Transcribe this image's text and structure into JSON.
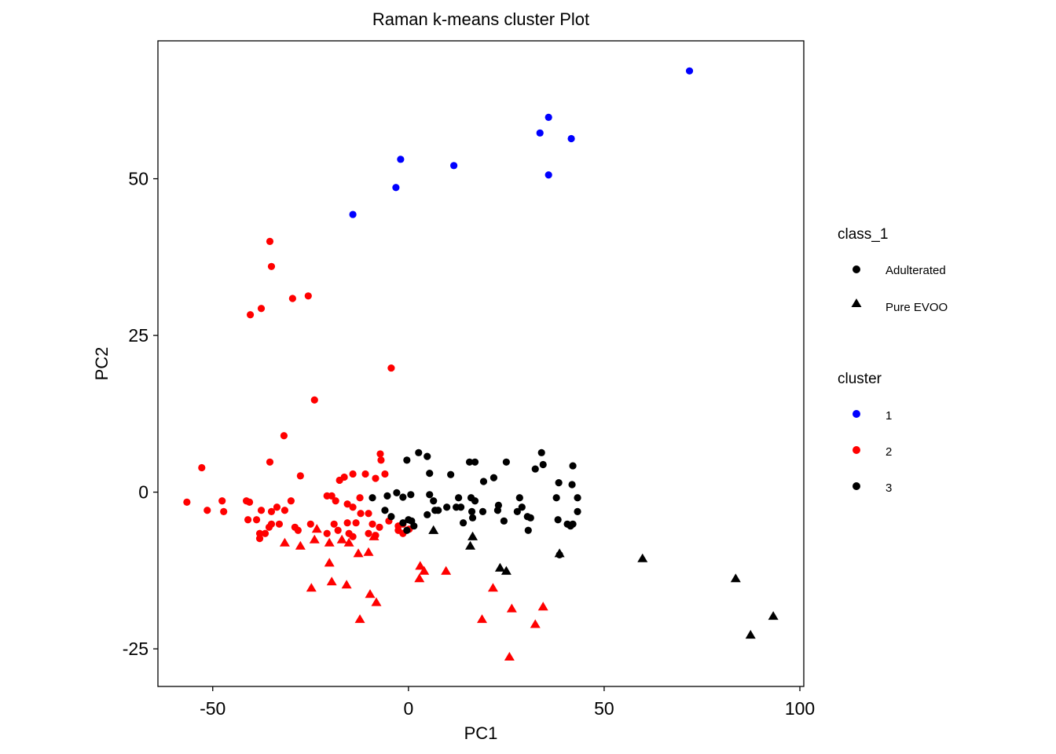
{
  "chart_data": {
    "type": "scatter",
    "title": "Raman k-means cluster Plot",
    "xlabel": "PC1",
    "ylabel": "PC2",
    "xlim": [
      -64,
      101
    ],
    "ylim": [
      -31,
      72
    ],
    "x_ticks": [
      -50,
      0,
      50,
      100
    ],
    "y_ticks": [
      -25,
      0,
      25,
      50
    ],
    "x_tick_labels": [
      "-50",
      "0",
      "50",
      "100"
    ],
    "y_tick_labels": [
      "-25",
      "0",
      "25",
      "50"
    ],
    "grid": false,
    "legend_position": "right",
    "legend": {
      "class_title": "class_1",
      "class_items": [
        {
          "label": "Adulterated",
          "shape": "circle"
        },
        {
          "label": "Pure EVOO",
          "shape": "triangle"
        }
      ],
      "cluster_title": "cluster",
      "cluster_items": [
        {
          "label": "1",
          "color": "#0000ff"
        },
        {
          "label": "2",
          "color": "#ff0000"
        },
        {
          "label": "3",
          "color": "#000000"
        }
      ]
    },
    "series": [
      {
        "cluster": "1",
        "class_1": "Adulterated",
        "shape": "circle",
        "color": "#0000ff",
        "points": [
          [
            71.8,
            67.2
          ],
          [
            35.8,
            59.8
          ],
          [
            33.6,
            57.3
          ],
          [
            41.6,
            56.4
          ],
          [
            -2.0,
            53.1
          ],
          [
            11.6,
            52.1
          ],
          [
            35.8,
            50.6
          ],
          [
            -3.2,
            48.6
          ],
          [
            -14.2,
            44.3
          ]
        ]
      },
      {
        "cluster": "2",
        "class_1": "Adulterated",
        "shape": "circle",
        "color": "#ff0000",
        "points": [
          [
            -35.4,
            40.0
          ],
          [
            -35.0,
            36.0
          ],
          [
            -25.6,
            31.3
          ],
          [
            -29.6,
            30.9
          ],
          [
            -37.6,
            29.3
          ],
          [
            -40.4,
            28.3
          ],
          [
            -4.4,
            19.8
          ],
          [
            -24.0,
            14.7
          ],
          [
            -31.8,
            9.0
          ],
          [
            -35.4,
            4.8
          ],
          [
            -52.8,
            3.9
          ],
          [
            -27.6,
            2.6
          ],
          [
            -7.2,
            6.1
          ],
          [
            -7.0,
            5.1
          ],
          [
            -14.2,
            2.9
          ],
          [
            -16.4,
            2.4
          ],
          [
            -11.0,
            2.9
          ],
          [
            -8.4,
            2.2
          ],
          [
            -6.0,
            2.9
          ],
          [
            -17.6,
            1.9
          ],
          [
            -19.6,
            -0.6
          ],
          [
            -20.8,
            -0.6
          ],
          [
            -56.6,
            -1.6
          ],
          [
            -47.6,
            -1.4
          ],
          [
            -41.4,
            -1.4
          ],
          [
            -40.6,
            -1.6
          ],
          [
            -30.0,
            -1.4
          ],
          [
            -33.6,
            -2.4
          ],
          [
            -31.6,
            -2.9
          ],
          [
            -35.0,
            -3.1
          ],
          [
            -37.6,
            -2.9
          ],
          [
            -18.6,
            -1.4
          ],
          [
            -12.4,
            -0.9
          ],
          [
            -15.6,
            -1.9
          ],
          [
            -14.2,
            -2.4
          ],
          [
            -51.4,
            -2.9
          ],
          [
            -47.2,
            -3.1
          ],
          [
            -41.0,
            -4.4
          ],
          [
            -38.8,
            -4.4
          ],
          [
            -12.2,
            -3.4
          ],
          [
            -10.2,
            -3.4
          ],
          [
            -5.0,
            -4.6
          ],
          [
            -35.6,
            -5.6
          ],
          [
            -35.0,
            -5.1
          ],
          [
            -33.0,
            -5.1
          ],
          [
            -29.0,
            -5.6
          ],
          [
            -25.0,
            -5.1
          ],
          [
            -19.0,
            -5.1
          ],
          [
            -15.6,
            -4.9
          ],
          [
            -13.4,
            -4.9
          ],
          [
            -9.2,
            -5.1
          ],
          [
            -7.4,
            -5.6
          ],
          [
            -2.6,
            -5.4
          ],
          [
            -1.4,
            -5.1
          ],
          [
            0.2,
            -5.9
          ],
          [
            -38.0,
            -6.6
          ],
          [
            -36.6,
            -6.6
          ],
          [
            -28.2,
            -6.1
          ],
          [
            -20.8,
            -6.6
          ],
          [
            -18.0,
            -6.1
          ],
          [
            -15.2,
            -6.6
          ],
          [
            -14.2,
            -7.1
          ],
          [
            -10.2,
            -6.6
          ],
          [
            -8.4,
            -6.9
          ],
          [
            -2.6,
            -6.1
          ],
          [
            -1.4,
            -6.6
          ],
          [
            -38.0,
            -7.4
          ]
        ]
      },
      {
        "cluster": "2",
        "class_1": "Pure EVOO",
        "shape": "triangle",
        "color": "#ff0000",
        "points": [
          [
            -24.0,
            -7.6
          ],
          [
            -17.0,
            -7.6
          ],
          [
            -15.2,
            -8.1
          ],
          [
            -20.2,
            -8.1
          ],
          [
            -23.4,
            -5.9
          ],
          [
            -31.6,
            -8.1
          ],
          [
            -27.6,
            -8.6
          ],
          [
            -8.8,
            -7.1
          ],
          [
            -12.8,
            -9.8
          ],
          [
            -10.2,
            -9.6
          ],
          [
            -20.2,
            -11.3
          ],
          [
            3.0,
            -11.8
          ],
          [
            4.0,
            -12.6
          ],
          [
            9.6,
            -12.6
          ],
          [
            2.8,
            -13.8
          ],
          [
            -15.8,
            -14.8
          ],
          [
            -19.6,
            -14.3
          ],
          [
            -24.8,
            -15.3
          ],
          [
            21.6,
            -15.3
          ],
          [
            -9.8,
            -16.3
          ],
          [
            -8.2,
            -17.6
          ],
          [
            26.4,
            -18.6
          ],
          [
            34.4,
            -18.3
          ],
          [
            -12.4,
            -20.3
          ],
          [
            18.8,
            -20.3
          ],
          [
            32.4,
            -21.1
          ],
          [
            25.8,
            -26.3
          ]
        ]
      },
      {
        "cluster": "3",
        "class_1": "Adulterated",
        "shape": "circle",
        "color": "#000000",
        "points": [
          [
            2.6,
            6.3
          ],
          [
            4.8,
            5.7
          ],
          [
            34.0,
            6.3
          ],
          [
            -0.4,
            5.1
          ],
          [
            15.6,
            4.8
          ],
          [
            17.0,
            4.8
          ],
          [
            25.0,
            4.8
          ],
          [
            34.4,
            4.4
          ],
          [
            42.0,
            4.2
          ],
          [
            32.4,
            3.7
          ],
          [
            5.4,
            3.0
          ],
          [
            10.8,
            2.8
          ],
          [
            21.8,
            2.3
          ],
          [
            19.2,
            1.7
          ],
          [
            38.4,
            1.5
          ],
          [
            41.8,
            1.2
          ],
          [
            -9.2,
            -0.9
          ],
          [
            -5.4,
            -0.6
          ],
          [
            -3.0,
            -0.1
          ],
          [
            -1.4,
            -0.8
          ],
          [
            0.6,
            -0.4
          ],
          [
            5.4,
            -0.4
          ],
          [
            6.4,
            -1.4
          ],
          [
            12.8,
            -0.9
          ],
          [
            16.0,
            -0.9
          ],
          [
            17.0,
            -1.4
          ],
          [
            23.0,
            -2.1
          ],
          [
            28.4,
            -0.9
          ],
          [
            29.0,
            -2.4
          ],
          [
            37.8,
            -0.9
          ],
          [
            43.2,
            -0.9
          ],
          [
            -6.0,
            -2.9
          ],
          [
            -4.4,
            -3.9
          ],
          [
            0.0,
            -4.4
          ],
          [
            0.8,
            -4.6
          ],
          [
            4.8,
            -3.6
          ],
          [
            6.8,
            -2.9
          ],
          [
            7.6,
            -2.9
          ],
          [
            9.8,
            -2.4
          ],
          [
            12.2,
            -2.4
          ],
          [
            13.4,
            -2.4
          ],
          [
            16.2,
            -3.1
          ],
          [
            19.0,
            -3.1
          ],
          [
            22.8,
            -2.9
          ],
          [
            27.8,
            -3.1
          ],
          [
            30.4,
            -3.9
          ],
          [
            31.2,
            -4.1
          ],
          [
            43.2,
            -3.1
          ],
          [
            -1.4,
            -4.9
          ],
          [
            1.4,
            -5.4
          ],
          [
            14.0,
            -4.9
          ],
          [
            16.4,
            -4.1
          ],
          [
            24.4,
            -4.6
          ],
          [
            38.2,
            -4.4
          ],
          [
            40.6,
            -5.1
          ],
          [
            41.4,
            -5.4
          ],
          [
            42.0,
            -5.1
          ],
          [
            -0.4,
            -6.1
          ],
          [
            30.6,
            -6.1
          ],
          [
            38.6,
            -10.0
          ]
        ]
      },
      {
        "cluster": "3",
        "class_1": "Pure EVOO",
        "shape": "triangle",
        "color": "#000000",
        "points": [
          [
            6.4,
            -6.1
          ],
          [
            16.4,
            -7.1
          ],
          [
            15.8,
            -8.6
          ],
          [
            38.6,
            -9.8
          ],
          [
            59.8,
            -10.6
          ],
          [
            23.4,
            -12.1
          ],
          [
            25.0,
            -12.6
          ],
          [
            83.6,
            -13.8
          ],
          [
            93.2,
            -19.8
          ],
          [
            87.4,
            -22.8
          ]
        ]
      }
    ]
  }
}
